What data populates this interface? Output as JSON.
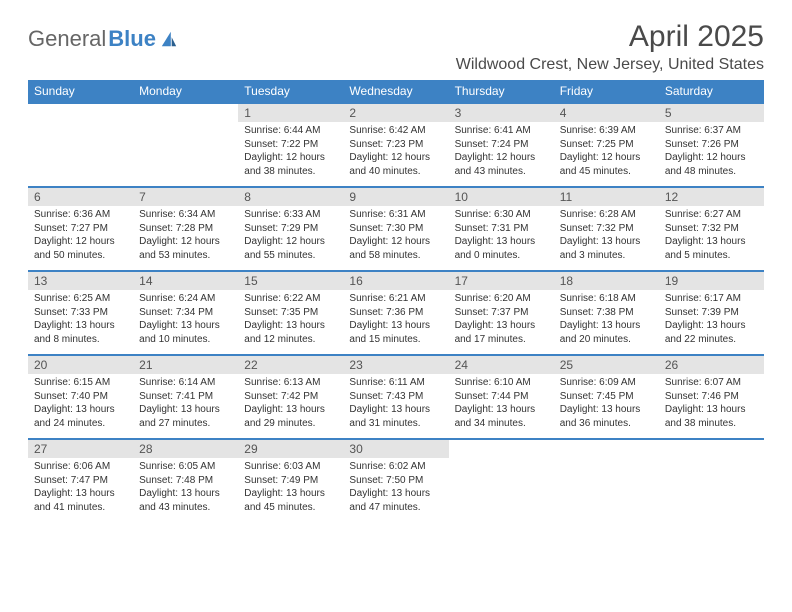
{
  "logo": {
    "text1": "General",
    "text2": "Blue"
  },
  "title": "April 2025",
  "location": "Wildwood Crest, New Jersey, United States",
  "colors": {
    "header_bg": "#3d82c4",
    "header_text": "#ffffff",
    "daynum_bg": "#e4e4e4",
    "border": "#3d82c4",
    "text": "#333333",
    "background": "#ffffff"
  },
  "day_headers": [
    "Sunday",
    "Monday",
    "Tuesday",
    "Wednesday",
    "Thursday",
    "Friday",
    "Saturday"
  ],
  "weeks": [
    [
      null,
      null,
      {
        "n": "1",
        "sunrise": "Sunrise: 6:44 AM",
        "sunset": "Sunset: 7:22 PM",
        "dl1": "Daylight: 12 hours",
        "dl2": "and 38 minutes."
      },
      {
        "n": "2",
        "sunrise": "Sunrise: 6:42 AM",
        "sunset": "Sunset: 7:23 PM",
        "dl1": "Daylight: 12 hours",
        "dl2": "and 40 minutes."
      },
      {
        "n": "3",
        "sunrise": "Sunrise: 6:41 AM",
        "sunset": "Sunset: 7:24 PM",
        "dl1": "Daylight: 12 hours",
        "dl2": "and 43 minutes."
      },
      {
        "n": "4",
        "sunrise": "Sunrise: 6:39 AM",
        "sunset": "Sunset: 7:25 PM",
        "dl1": "Daylight: 12 hours",
        "dl2": "and 45 minutes."
      },
      {
        "n": "5",
        "sunrise": "Sunrise: 6:37 AM",
        "sunset": "Sunset: 7:26 PM",
        "dl1": "Daylight: 12 hours",
        "dl2": "and 48 minutes."
      }
    ],
    [
      {
        "n": "6",
        "sunrise": "Sunrise: 6:36 AM",
        "sunset": "Sunset: 7:27 PM",
        "dl1": "Daylight: 12 hours",
        "dl2": "and 50 minutes."
      },
      {
        "n": "7",
        "sunrise": "Sunrise: 6:34 AM",
        "sunset": "Sunset: 7:28 PM",
        "dl1": "Daylight: 12 hours",
        "dl2": "and 53 minutes."
      },
      {
        "n": "8",
        "sunrise": "Sunrise: 6:33 AM",
        "sunset": "Sunset: 7:29 PM",
        "dl1": "Daylight: 12 hours",
        "dl2": "and 55 minutes."
      },
      {
        "n": "9",
        "sunrise": "Sunrise: 6:31 AM",
        "sunset": "Sunset: 7:30 PM",
        "dl1": "Daylight: 12 hours",
        "dl2": "and 58 minutes."
      },
      {
        "n": "10",
        "sunrise": "Sunrise: 6:30 AM",
        "sunset": "Sunset: 7:31 PM",
        "dl1": "Daylight: 13 hours",
        "dl2": "and 0 minutes."
      },
      {
        "n": "11",
        "sunrise": "Sunrise: 6:28 AM",
        "sunset": "Sunset: 7:32 PM",
        "dl1": "Daylight: 13 hours",
        "dl2": "and 3 minutes."
      },
      {
        "n": "12",
        "sunrise": "Sunrise: 6:27 AM",
        "sunset": "Sunset: 7:32 PM",
        "dl1": "Daylight: 13 hours",
        "dl2": "and 5 minutes."
      }
    ],
    [
      {
        "n": "13",
        "sunrise": "Sunrise: 6:25 AM",
        "sunset": "Sunset: 7:33 PM",
        "dl1": "Daylight: 13 hours",
        "dl2": "and 8 minutes."
      },
      {
        "n": "14",
        "sunrise": "Sunrise: 6:24 AM",
        "sunset": "Sunset: 7:34 PM",
        "dl1": "Daylight: 13 hours",
        "dl2": "and 10 minutes."
      },
      {
        "n": "15",
        "sunrise": "Sunrise: 6:22 AM",
        "sunset": "Sunset: 7:35 PM",
        "dl1": "Daylight: 13 hours",
        "dl2": "and 12 minutes."
      },
      {
        "n": "16",
        "sunrise": "Sunrise: 6:21 AM",
        "sunset": "Sunset: 7:36 PM",
        "dl1": "Daylight: 13 hours",
        "dl2": "and 15 minutes."
      },
      {
        "n": "17",
        "sunrise": "Sunrise: 6:20 AM",
        "sunset": "Sunset: 7:37 PM",
        "dl1": "Daylight: 13 hours",
        "dl2": "and 17 minutes."
      },
      {
        "n": "18",
        "sunrise": "Sunrise: 6:18 AM",
        "sunset": "Sunset: 7:38 PM",
        "dl1": "Daylight: 13 hours",
        "dl2": "and 20 minutes."
      },
      {
        "n": "19",
        "sunrise": "Sunrise: 6:17 AM",
        "sunset": "Sunset: 7:39 PM",
        "dl1": "Daylight: 13 hours",
        "dl2": "and 22 minutes."
      }
    ],
    [
      {
        "n": "20",
        "sunrise": "Sunrise: 6:15 AM",
        "sunset": "Sunset: 7:40 PM",
        "dl1": "Daylight: 13 hours",
        "dl2": "and 24 minutes."
      },
      {
        "n": "21",
        "sunrise": "Sunrise: 6:14 AM",
        "sunset": "Sunset: 7:41 PM",
        "dl1": "Daylight: 13 hours",
        "dl2": "and 27 minutes."
      },
      {
        "n": "22",
        "sunrise": "Sunrise: 6:13 AM",
        "sunset": "Sunset: 7:42 PM",
        "dl1": "Daylight: 13 hours",
        "dl2": "and 29 minutes."
      },
      {
        "n": "23",
        "sunrise": "Sunrise: 6:11 AM",
        "sunset": "Sunset: 7:43 PM",
        "dl1": "Daylight: 13 hours",
        "dl2": "and 31 minutes."
      },
      {
        "n": "24",
        "sunrise": "Sunrise: 6:10 AM",
        "sunset": "Sunset: 7:44 PM",
        "dl1": "Daylight: 13 hours",
        "dl2": "and 34 minutes."
      },
      {
        "n": "25",
        "sunrise": "Sunrise: 6:09 AM",
        "sunset": "Sunset: 7:45 PM",
        "dl1": "Daylight: 13 hours",
        "dl2": "and 36 minutes."
      },
      {
        "n": "26",
        "sunrise": "Sunrise: 6:07 AM",
        "sunset": "Sunset: 7:46 PM",
        "dl1": "Daylight: 13 hours",
        "dl2": "and 38 minutes."
      }
    ],
    [
      {
        "n": "27",
        "sunrise": "Sunrise: 6:06 AM",
        "sunset": "Sunset: 7:47 PM",
        "dl1": "Daylight: 13 hours",
        "dl2": "and 41 minutes."
      },
      {
        "n": "28",
        "sunrise": "Sunrise: 6:05 AM",
        "sunset": "Sunset: 7:48 PM",
        "dl1": "Daylight: 13 hours",
        "dl2": "and 43 minutes."
      },
      {
        "n": "29",
        "sunrise": "Sunrise: 6:03 AM",
        "sunset": "Sunset: 7:49 PM",
        "dl1": "Daylight: 13 hours",
        "dl2": "and 45 minutes."
      },
      {
        "n": "30",
        "sunrise": "Sunrise: 6:02 AM",
        "sunset": "Sunset: 7:50 PM",
        "dl1": "Daylight: 13 hours",
        "dl2": "and 47 minutes."
      },
      null,
      null,
      null
    ]
  ]
}
